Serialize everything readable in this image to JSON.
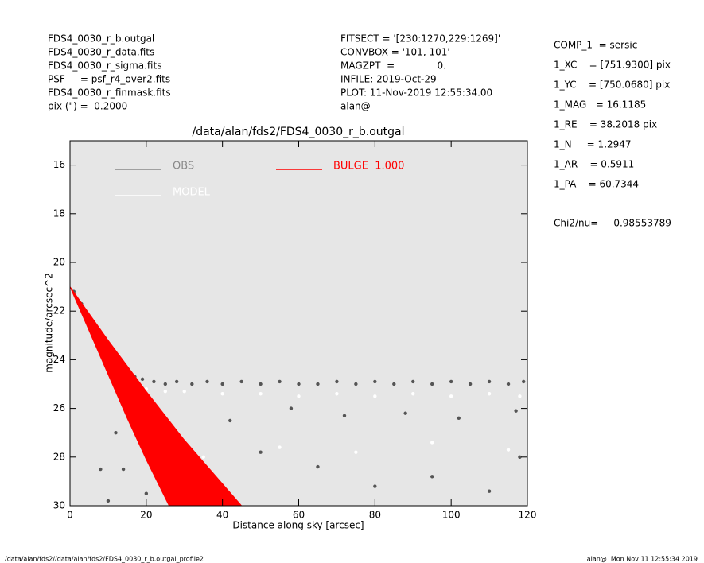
{
  "chart_data": {
    "type": "scatter",
    "title": "/data/alan/fds2/FDS4_0030_r_b.outgal",
    "x_label": "Distance along sky [arcsec]",
    "y_label": "magnitude/arcsec^2",
    "xlim": [
      0,
      120
    ],
    "xticks": [
      0,
      20,
      40,
      60,
      80,
      100,
      120
    ],
    "ylim": [
      15,
      30
    ],
    "yticks": [
      16,
      18,
      20,
      22,
      24,
      26,
      28,
      30
    ],
    "y_inverted": true,
    "background": "#e6e6e6",
    "header_left": [
      "FDS4_0030_r_b.outgal",
      "FDS4_0030_r_data.fits",
      "FDS4_0030_r_sigma.fits",
      "PSF     = psf_r4_over2.fits",
      "FDS4_0030_r_finmask.fits",
      "pix (\") =  0.2000"
    ],
    "header_middle": [
      "FITSECT = '[230:1270,229:1269]'",
      "CONVBOX = '101, 101'",
      "MAGZPT  =              0.",
      "INFILE: 2019-Oct-29",
      "PLOT: 11-Nov-2019 12:55:34.00",
      "alan@"
    ],
    "header_right": [
      "COMP_1  = sersic",
      "1_XC    = [751.9300] pix",
      "1_YC    = [750.0680] pix",
      "1_MAG   = 16.1185",
      "1_RE    = 38.2018 pix",
      "1_N     = 1.2947",
      "1_AR    = 0.5911",
      "1_PA    = 60.7344"
    ],
    "chi2": "Chi2/nu=     0.98553789",
    "footer_left": "/data/alan/fds2//data/alan/fds2/FDS4_0030_r_b.outgal_profile2",
    "footer_right": "alan@  Mon Nov 11 12:55:34 2019",
    "series": [
      {
        "name": "OBS",
        "color": "#555555",
        "legend_color": "#888888",
        "x": [
          1,
          3,
          5,
          7,
          9,
          11,
          13,
          15,
          17,
          19,
          22,
          25,
          28,
          32,
          36,
          40,
          45,
          50,
          55,
          60,
          65,
          70,
          75,
          80,
          85,
          90,
          95,
          100,
          105,
          110,
          115,
          119,
          12,
          14,
          20,
          30,
          42,
          58,
          72,
          88,
          102,
          117,
          8,
          10,
          24,
          35,
          50,
          65,
          80,
          95,
          110,
          118
        ],
        "values": [
          21.2,
          21.7,
          22.3,
          23.0,
          23.8,
          24.4,
          24.8,
          24.6,
          24.7,
          24.8,
          24.9,
          25.0,
          24.9,
          25.0,
          24.9,
          25.0,
          24.9,
          25.0,
          24.9,
          25.0,
          25.0,
          24.9,
          25.0,
          24.9,
          25.0,
          24.9,
          25.0,
          24.9,
          25.0,
          24.9,
          25.0,
          24.9,
          27,
          28.5,
          29.5,
          29.8,
          26.5,
          26,
          26.3,
          26.2,
          26.4,
          26.1,
          28.5,
          29.8,
          27.5,
          29.5,
          27.8,
          28.4,
          29.2,
          28.8,
          29.4,
          28
        ]
      },
      {
        "name": "MODEL",
        "color": "#ffffff",
        "legend_color": "#ffffff",
        "x": [
          5,
          10,
          15,
          20,
          25,
          30,
          40,
          50,
          60,
          70,
          80,
          90,
          100,
          110,
          118,
          20,
          35,
          55,
          75,
          95,
          115
        ],
        "values": [
          22.2,
          23.6,
          24.8,
          25.2,
          25.3,
          25.3,
          25.4,
          25.4,
          25.5,
          25.4,
          25.5,
          25.4,
          25.5,
          25.4,
          25.5,
          27.5,
          28,
          27.6,
          27.8,
          27.4,
          27.7
        ]
      },
      {
        "name": "BULGE  1.000",
        "color": "#ff0000",
        "legend_color": "#ff0000",
        "band": true,
        "x": [
          0,
          5,
          10,
          15,
          20,
          26
        ],
        "values": [
          21,
          22.8,
          24.6,
          26.4,
          28.1,
          30
        ],
        "x_outer": [
          0,
          10,
          20,
          30,
          40,
          45
        ],
        "values_outer": [
          21,
          23.2,
          25.3,
          27.3,
          29.1,
          30
        ]
      }
    ]
  }
}
